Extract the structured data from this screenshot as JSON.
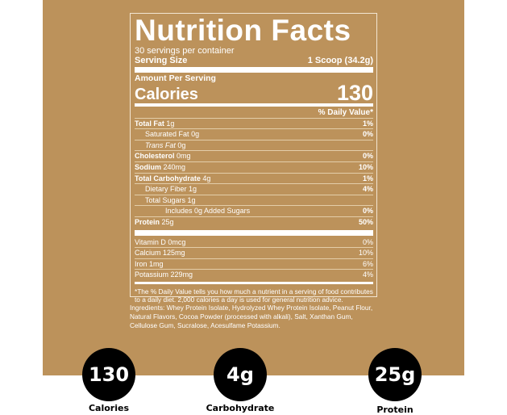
{
  "colors": {
    "background": "#bc925b",
    "circle": "#000000"
  },
  "label": {
    "title": "Nutrition Facts",
    "servings": "30 servings per container",
    "serving_size_label": "Serving Size",
    "serving_size_value": "1 Scoop (34.2g)",
    "amount_per_serving": "Amount Per Serving",
    "calories_label": "Calories",
    "calories_value": "130",
    "daily_value_header": "% Daily Value*",
    "nutrients": [
      {
        "name": "Total Fat",
        "amount": "1g",
        "dv": "1%",
        "bold": true,
        "indent": 0
      },
      {
        "name": "Saturated Fat",
        "amount": "0g",
        "dv": "0%",
        "bold": false,
        "indent": 1
      },
      {
        "name": "Trans Fat",
        "amount": "0g",
        "dv": "",
        "bold": false,
        "indent": 1,
        "italic": true
      },
      {
        "name": "Cholesterol",
        "amount": "0mg",
        "dv": "0%",
        "bold": true,
        "indent": 0
      },
      {
        "name": "Sodium",
        "amount": "240mg",
        "dv": "10%",
        "bold": true,
        "indent": 0
      },
      {
        "name": "Total Carbohydrate",
        "amount": "4g",
        "dv": "1%",
        "bold": true,
        "indent": 0
      },
      {
        "name": "Dietary Fiber",
        "amount": "1g",
        "dv": "4%",
        "bold": false,
        "indent": 1
      },
      {
        "name": "Total Sugars",
        "amount": "1g",
        "dv": "",
        "bold": false,
        "indent": 1
      },
      {
        "name": "Includes 0g Added Sugars",
        "amount": "",
        "dv": "0%",
        "bold": false,
        "indent": 2
      },
      {
        "name": "Protein",
        "amount": "25g",
        "dv": "50%",
        "bold": true,
        "indent": 0
      }
    ],
    "vitamins": [
      {
        "name": "Vitamin D",
        "amount": "0mcg",
        "dv": "0%"
      },
      {
        "name": "Calcium",
        "amount": "125mg",
        "dv": "10%"
      },
      {
        "name": "Iron",
        "amount": "1mg",
        "dv": "6%"
      },
      {
        "name": "Potassium",
        "amount": "229mg",
        "dv": "4%"
      }
    ],
    "footnote": "*The % Daily Value tells you how much a nutrient in a serving of food contributes to a daily diet. 2,000 calories a day is used for general nutrition advice."
  },
  "ingredients": "Ingredients: Whey Protein Isolate, Hydrolyzed Whey Protein Isolate, Peanut Flour, Natural Flavors, Cocoa Powder (processed with alkali), Salt, Xanthan Gum, Cellulose Gum, Sucralose, Acesulfame Potassium.",
  "highlights": [
    {
      "value": "130",
      "label": "Calories"
    },
    {
      "value": "4g",
      "label": "Carbohydrate"
    },
    {
      "value": "25g",
      "label": "Protein"
    }
  ]
}
